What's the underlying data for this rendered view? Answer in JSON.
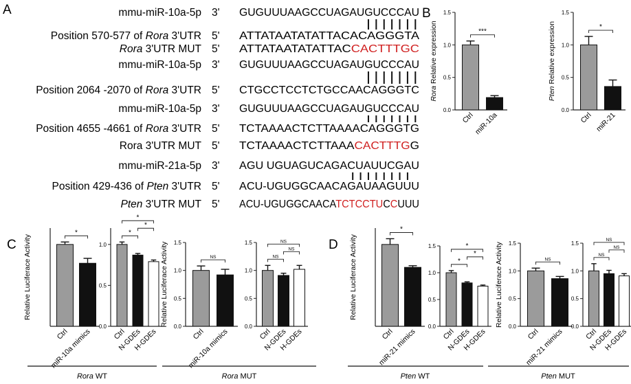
{
  "panel_labels": {
    "a": "A",
    "b": "B",
    "c": "C",
    "d": "D"
  },
  "colors": {
    "red": "#d02020",
    "ctrl_bar": "#9b9b9b",
    "treat_bar": "#111111",
    "white_bar": "#ffffff"
  },
  "panel_a": {
    "rows": [
      {
        "label": "mmu-miR-10a-5p",
        "prime": "3'",
        "seq": [
          {
            "t": "GUGUUUAAGCCUAGAUGUCCCAU"
          }
        ]
      },
      {
        "label": "Position 570-577 of ",
        "label_italic": "Rora",
        "label_tail": " 3'UTR",
        "prime": "5'",
        "seq": [
          {
            "t": "ATTATAATATATTACACAGGGTA"
          }
        ]
      },
      {
        "label": "",
        "label_italic": "Rora",
        "label_tail": " 3'UTR MUT",
        "prime": "5'",
        "seq": [
          {
            "t": "ATTATAATATATTAC"
          },
          {
            "t": "CACTTTGC",
            "red": true
          }
        ]
      },
      {
        "label": "mmu-miR-10a-5p",
        "prime": "3'",
        "seq": [
          {
            "t": "GUGUUUAAGCCUAGAUGUCCCAU"
          }
        ]
      },
      {
        "label": "Position 2064 -2070 of ",
        "label_italic": "Rora",
        "label_tail": " 3'UTR",
        "prime": "5'",
        "seq": [
          {
            "t": "CTGCCTCCTCTGCCAACAGGGTC"
          }
        ]
      },
      {
        "label": "mmu-miR-10a-5p",
        "prime": "3'",
        "seq": [
          {
            "t": "GUGUUUAAGCCUAGAUGUCCCAU"
          }
        ]
      },
      {
        "label": "Position 4655 -4661 of ",
        "label_italic": "Rora",
        "label_tail": " 3'UTR",
        "prime": "5'",
        "seq": [
          {
            "t": "TCTAAAACTCTTAAAACAGGGTG"
          }
        ]
      },
      {
        "label": "Rora 3'UTR MUT",
        "prime": "5'",
        "seq": [
          {
            "t": "TCTAAAACTCTTAAA"
          },
          {
            "t": "CACTTTG",
            "red": true
          },
          {
            "t": "G"
          }
        ]
      },
      {
        "label": "mmu-miR-21a-5p",
        "prime": "3'",
        "seq": [
          {
            "t": "AGU UGUAGUCAGACUAUUCGAU"
          }
        ]
      },
      {
        "label": "Position 429-436 of ",
        "label_italic": "Pten",
        "label_tail": " 3'UTR",
        "prime": "5'",
        "seq": [
          {
            "t": "ACU-UGUGGCAACAGAUAAGUUU"
          }
        ]
      },
      {
        "label": "",
        "label_italic": "Pten",
        "label_tail": " 3'UTR MUT",
        "prime": "5'",
        "seq": [
          {
            "t": "ACU-UGUGGCAACA"
          },
          {
            "t": "TCTCCTU",
            "red": true
          },
          {
            "t": "C"
          },
          {
            "t": "C",
            "red": true
          },
          {
            "t": "UUU"
          }
        ]
      }
    ]
  },
  "chart_data": [
    {
      "type": "bar",
      "panel": "B",
      "ylabel_italic": "Rora",
      "ylabel": "Relative expression",
      "ylim": [
        0,
        1.5
      ],
      "yticks": [
        "0.0",
        "0.5",
        "1.0",
        "1.5"
      ],
      "categories": [
        "Ctrl",
        "miR-10a"
      ],
      "values": [
        1.0,
        0.19
      ],
      "errors": [
        0.06,
        0.03
      ],
      "fills": [
        "ctrl",
        "treat"
      ],
      "sig": [
        {
          "a": 0,
          "b": 1,
          "label": "***"
        }
      ]
    },
    {
      "type": "bar",
      "panel": "B",
      "ylabel_italic": "Pten",
      "ylabel": "Relative expression",
      "ylim": [
        0,
        1.5
      ],
      "yticks": [
        "0.0",
        "0.5",
        "1.0",
        "1.5"
      ],
      "categories": [
        "Ctrl",
        "miR-21"
      ],
      "values": [
        1.0,
        0.36
      ],
      "errors": [
        0.13,
        0.1
      ],
      "fills": [
        "ctrl",
        "treat"
      ],
      "sig": [
        {
          "a": 0,
          "b": 1,
          "label": "*"
        }
      ]
    },
    {
      "type": "bar",
      "panel": "C",
      "ylabel": "Relative Luciferace Activity",
      "ylim": [
        0,
        1.2
      ],
      "yticks": [],
      "categories": [
        "Ctrl",
        "miR-10a mimics"
      ],
      "values": [
        1.0,
        0.77
      ],
      "errors": [
        0.03,
        0.06
      ],
      "fills": [
        "ctrl",
        "treat"
      ],
      "sig": [
        {
          "a": 0,
          "b": 1,
          "label": "*"
        }
      ]
    },
    {
      "type": "bar",
      "panel": "C",
      "ylim": [
        0,
        1.2
      ],
      "yticks": [
        "0.0",
        "0.5",
        "1.0"
      ],
      "categories": [
        "Ctrl",
        "N-GDEs",
        "H-GDEs"
      ],
      "values": [
        1.0,
        0.87,
        0.79
      ],
      "errors": [
        0.03,
        0.02,
        0.02
      ],
      "fills": [
        "ctrl",
        "treat",
        "white"
      ],
      "sig": [
        {
          "a": 0,
          "b": 1,
          "label": "*"
        },
        {
          "a": 0,
          "b": 2,
          "label": "*"
        },
        {
          "a": 1,
          "b": 2,
          "label": "*"
        }
      ]
    },
    {
      "type": "bar",
      "panel": "C",
      "ylabel": "Relative Luciferace Activity",
      "ylim": [
        0,
        1.5
      ],
      "yticks": [
        "0.0",
        "0.5",
        "1.0",
        "1.5"
      ],
      "categories": [
        "Ctrl",
        "miR-10a mimics"
      ],
      "values": [
        1.0,
        0.92
      ],
      "errors": [
        0.08,
        0.1
      ],
      "fills": [
        "ctrl",
        "treat"
      ],
      "sig": [
        {
          "a": 0,
          "b": 1,
          "label": "NS"
        }
      ]
    },
    {
      "type": "bar",
      "panel": "C",
      "ylim": [
        0,
        1.5
      ],
      "yticks": [
        "0.0",
        "0.5",
        "1.0",
        "1.5"
      ],
      "categories": [
        "Ctrl",
        "N-GDEs",
        "H-GDEs"
      ],
      "values": [
        1.0,
        0.91,
        1.02
      ],
      "errors": [
        0.09,
        0.04,
        0.07
      ],
      "fills": [
        "ctrl",
        "treat",
        "white"
      ],
      "sig": [
        {
          "a": 0,
          "b": 1,
          "label": "NS"
        },
        {
          "a": 0,
          "b": 2,
          "label": "NS"
        },
        {
          "a": 1,
          "b": 2,
          "label": "NS"
        }
      ]
    },
    {
      "type": "bar",
      "panel": "D",
      "ylabel": "Relative Luciferace Activity",
      "ylim": [
        0,
        1.2
      ],
      "yticks": [],
      "categories": [
        "Ctrl",
        "miR-21 mimics"
      ],
      "values": [
        1.0,
        0.72
      ],
      "errors": [
        0.07,
        0.02
      ],
      "fills": [
        "ctrl",
        "treat"
      ],
      "sig": [
        {
          "a": 0,
          "b": 1,
          "label": "*"
        }
      ]
    },
    {
      "type": "bar",
      "panel": "D",
      "ylim": [
        0,
        1.5
      ],
      "yticks": [
        "0.0",
        "0.5",
        "1.0",
        "1.5"
      ],
      "categories": [
        "Ctrl",
        "N-GDEs",
        "H-GDEs"
      ],
      "values": [
        1.0,
        0.81,
        0.75
      ],
      "errors": [
        0.04,
        0.02,
        0.02
      ],
      "fills": [
        "ctrl",
        "treat",
        "white"
      ],
      "sig": [
        {
          "a": 0,
          "b": 1,
          "label": "*"
        },
        {
          "a": 0,
          "b": 2,
          "label": "*"
        },
        {
          "a": 1,
          "b": 2,
          "label": "*"
        }
      ]
    },
    {
      "type": "bar",
      "panel": "D",
      "ylabel": "Relative Luciferace Activity",
      "ylim": [
        0,
        1.5
      ],
      "yticks": [
        "0.0",
        "0.5",
        "1.0",
        "1.5"
      ],
      "categories": [
        "Ctrl",
        "miR-21 mimics"
      ],
      "values": [
        1.0,
        0.86
      ],
      "errors": [
        0.05,
        0.04
      ],
      "fills": [
        "ctrl",
        "treat"
      ],
      "sig": [
        {
          "a": 0,
          "b": 1,
          "label": "NS"
        }
      ]
    },
    {
      "type": "bar",
      "panel": "D",
      "ylim": [
        0,
        1.5
      ],
      "yticks": [
        "0.0",
        "0.5",
        "1.0",
        "1.5"
      ],
      "categories": [
        "Ctrl",
        "N-GDEs",
        "H-GDEs"
      ],
      "values": [
        1.0,
        0.95,
        0.91
      ],
      "errors": [
        0.13,
        0.06,
        0.04
      ],
      "fills": [
        "ctrl",
        "treat",
        "white"
      ],
      "sig": [
        {
          "a": 0,
          "b": 1,
          "label": "NS"
        },
        {
          "a": 0,
          "b": 2,
          "label": "NS"
        },
        {
          "a": 1,
          "b": 2,
          "label": "NS"
        }
      ]
    }
  ],
  "groups": [
    {
      "italic": "Rora",
      "rest": " WT"
    },
    {
      "italic": "Rora",
      "rest": " MUT"
    },
    {
      "italic": "Pten",
      "rest": " WT"
    },
    {
      "italic": "Pten",
      "rest": " MUT"
    }
  ]
}
